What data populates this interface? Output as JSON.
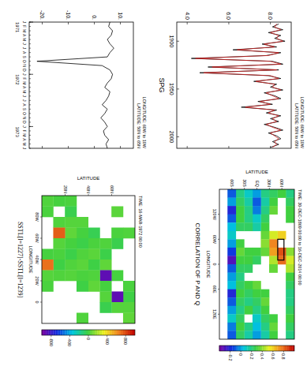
{
  "chart_data": [
    {
      "type": "line",
      "annotations": [
        "LONGITUDE: 60W to 10W",
        "LATITUDE: 50N to 65N"
      ],
      "categories": [
        "J",
        "F",
        "M",
        "A",
        "M",
        "J",
        "J",
        "A",
        "S",
        "O",
        "N",
        "D",
        "J",
        "F",
        "M",
        "A",
        "M",
        "J",
        "J",
        "A",
        "S",
        "O",
        "N",
        "D",
        "J",
        "F",
        "M",
        "A",
        "M",
        "J"
      ],
      "years": [
        {
          "label": "1971",
          "index": 0
        },
        {
          "label": "1972",
          "index": 12
        },
        {
          "label": "1973",
          "index": 24
        }
      ],
      "values": [
        6,
        5.5,
        7,
        6.5,
        5,
        6,
        7.5,
        6,
        5,
        -22,
        3,
        6,
        7,
        6.5,
        5,
        4,
        6,
        5.5,
        4.5,
        3,
        5,
        4,
        2.5,
        4,
        5,
        3.5,
        4,
        5.5,
        4.5,
        5
      ],
      "color": "#000000",
      "ylim": [
        -25,
        15
      ],
      "yticks": [
        {
          "value": -20,
          "label": "-20."
        },
        {
          "value": -10,
          "label": "-10."
        },
        {
          "value": 0,
          "label": "0."
        },
        {
          "value": 10,
          "label": "10."
        }
      ]
    },
    {
      "type": "line",
      "title": "SPG",
      "annotations": [
        "LONGITUDE: 60W to 10W",
        "LATITUDE: 50N to 65N"
      ],
      "x": [
        1882,
        1885,
        1888,
        1891,
        1894,
        1897,
        1900,
        1903,
        1906,
        1909,
        1912,
        1915,
        1918,
        1921,
        1924,
        1927,
        1930,
        1933,
        1936,
        1939,
        1942,
        1945,
        1948,
        1951,
        1954,
        1957,
        1960,
        1963,
        1966,
        1969,
        1972,
        1975,
        1978,
        1981,
        1984,
        1987,
        1990,
        1993,
        1996,
        1999,
        2002,
        2005,
        2008,
        2011
      ],
      "series": [
        {
          "color": "#000000",
          "values": [
            8.4,
            8.1,
            8.6,
            7.9,
            8.5,
            8.2,
            8.7,
            7.6,
            8.3,
            6.2,
            8.5,
            7.8,
            4.2,
            8.1,
            8.6,
            5.0,
            8.4,
            4.6,
            7.9,
            8.5,
            7.2,
            8.3,
            8.0,
            8.6,
            7.7,
            8.2,
            8.5,
            7.4,
            8.1,
            6.6,
            8.3,
            7.8,
            8.5,
            8.0,
            8.4,
            7.7,
            8.2,
            8.6,
            7.9,
            8.3,
            8.5,
            8.1,
            8.4,
            8.0
          ]
        },
        {
          "color": "#d02020",
          "values": [
            8.3,
            8.2,
            8.5,
            8.0,
            8.4,
            8.3,
            8.6,
            7.7,
            8.2,
            6.4,
            8.4,
            7.9,
            4.4,
            8.0,
            8.5,
            5.2,
            8.3,
            4.8,
            8.0,
            8.4,
            7.3,
            8.2,
            8.1,
            8.5,
            7.8,
            8.1,
            8.4,
            7.5,
            8.0,
            6.8,
            8.2,
            7.9,
            8.4,
            8.1,
            8.3,
            7.8,
            8.1,
            8.5,
            8.0,
            8.2,
            8.4,
            8.2,
            8.3,
            8.1
          ]
        }
      ],
      "xlim": [
        1880,
        2012
      ],
      "xticks": [
        1900,
        1950,
        2000
      ],
      "ylim": [
        3.5,
        9
      ],
      "yticks": [
        {
          "value": 4,
          "label": "4.0"
        },
        {
          "value": 6,
          "label": "6.0"
        },
        {
          "value": 8,
          "label": "8.0"
        }
      ]
    },
    {
      "type": "heatmap",
      "title": "CORRELATION OF P AND Q",
      "x_label": "LONGITUDE",
      "y_label": "LATITUDE",
      "annotations": [
        "TIME: 30-DEC-1869 00:00 to 16-DEC-2014 00:00"
      ],
      "x": [
        -170,
        -150,
        -130,
        -110,
        -90,
        -70,
        -50,
        -30,
        -10,
        10,
        30,
        50,
        70,
        90,
        110,
        130,
        150,
        170
      ],
      "y": [
        80,
        60,
        40,
        20,
        0,
        -20,
        -40,
        -60,
        -80
      ],
      "cells": [
        [
          0.2,
          0.25,
          0.3,
          0.3,
          null,
          null,
          null,
          0.4,
          0.5,
          0.45,
          0.3,
          0.25,
          0.2,
          0.2,
          0.25,
          0.3,
          0.25,
          0.2
        ],
        [
          0.3,
          null,
          null,
          null,
          null,
          0.6,
          null,
          0.85,
          0.8,
          null,
          null,
          null,
          null,
          null,
          null,
          null,
          null,
          null
        ],
        [
          0.25,
          0.3,
          0.35,
          null,
          null,
          0.5,
          0.75,
          0.7,
          0.45,
          0.35,
          null,
          null,
          null,
          null,
          null,
          0.3,
          0.35,
          0.3
        ],
        [
          0.2,
          0.15,
          0.2,
          0.25,
          0.3,
          0.35,
          0.4,
          0.35,
          null,
          null,
          null,
          null,
          0.3,
          0.35,
          0.3,
          0.25,
          0.2,
          0.15
        ],
        [
          0,
          -0.1,
          -0.05,
          0.1,
          0.15,
          null,
          null,
          0.3,
          0.25,
          null,
          null,
          0.35,
          0.3,
          0.25,
          0.2,
          0.1,
          0.05,
          0
        ],
        [
          0.1,
          0.15,
          0.2,
          0.2,
          0.25,
          null,
          null,
          0.3,
          0.3,
          0.25,
          null,
          0.3,
          0.25,
          0.2,
          0.3,
          null,
          0.2,
          0.15
        ],
        [
          0.2,
          0.25,
          0.3,
          0.3,
          0.25,
          null,
          0.3,
          0.35,
          0.3,
          0.25,
          0.2,
          0.25,
          0.3,
          0.25,
          0.2,
          0.25,
          0.3,
          0.25
        ],
        [
          -0.1,
          0,
          -0.2,
          -0.1,
          0.05,
          0.1,
          0,
          -0.15,
          -0.3,
          -0.1,
          0,
          0.05,
          -0.2,
          -0.1,
          0,
          0.1,
          -0.05,
          -0.1
        ],
        [
          null,
          null,
          null,
          null,
          null,
          null,
          null,
          null,
          null,
          null,
          null,
          null,
          null,
          null,
          null,
          null,
          null,
          null
        ]
      ],
      "xlim": [
        -180,
        180
      ],
      "xticks": [
        {
          "value": -120,
          "label": "120W"
        },
        {
          "value": -60,
          "label": "60W"
        },
        {
          "value": 0,
          "label": "0"
        },
        {
          "value": 60,
          "label": "60E"
        },
        {
          "value": 120,
          "label": "120E"
        }
      ],
      "ylim": [
        -90,
        90
      ],
      "yticks": [
        {
          "value": -60,
          "label": "60S"
        },
        {
          "value": -30,
          "label": "30S"
        },
        {
          "value": 0,
          "label": "EQ"
        },
        {
          "value": 30,
          "label": "30N"
        },
        {
          "value": 60,
          "label": "60N"
        }
      ],
      "box": {
        "xlim": [
          -60,
          -10
        ],
        "ylim": [
          50,
          65
        ]
      },
      "colorbar": {
        "range": [
          -0.4,
          1.0
        ],
        "ticks": [
          -0.2,
          0,
          0.2,
          0.4,
          0.6,
          0.8
        ]
      }
    },
    {
      "type": "heatmap",
      "title": "SSTL[l=1227]-SSTL[l=1239]",
      "x_label": "LONGITUDE",
      "y_label": "LATITUDE",
      "annotations": [
        "TIME: 16-MAR-1972 00:00"
      ],
      "x": [
        -95,
        -85,
        -75,
        -65,
        -55,
        -45,
        -35,
        -25,
        -15,
        -5,
        5,
        15
      ],
      "y": [
        75,
        65,
        55,
        45,
        35,
        25,
        15,
        5
      ],
      "cells": [
        [
          null,
          null,
          null,
          30,
          null,
          null,
          null,
          null,
          20,
          -10,
          40,
          60
        ],
        [
          null,
          50,
          null,
          20,
          -30,
          null,
          null,
          10,
          null,
          -900,
          40,
          null
        ],
        [
          null,
          null,
          null,
          null,
          30,
          -20,
          60,
          -900,
          10,
          40,
          -30,
          null
        ],
        [
          null,
          null,
          null,
          -40,
          20,
          50,
          -10,
          30,
          60,
          null,
          null,
          null
        ],
        [
          null,
          null,
          40,
          10,
          -20,
          30,
          50,
          20,
          -10,
          null,
          null,
          30
        ],
        [
          20,
          -30,
          40,
          60,
          10,
          -20,
          30,
          40,
          null,
          null,
          null,
          null
        ],
        [
          10,
          null,
          30,
          750,
          40,
          20,
          -10,
          30,
          null,
          null,
          null,
          null
        ],
        [
          30,
          20,
          null,
          null,
          null,
          10,
          700,
          40,
          20,
          null,
          null,
          null
        ]
      ],
      "xlim": [
        -100,
        20
      ],
      "xticks": [
        {
          "value": -80,
          "label": "80W"
        },
        {
          "value": -60,
          "label": "60W"
        },
        {
          "value": -40,
          "label": "40W"
        },
        {
          "value": -20,
          "label": "20W"
        },
        {
          "value": 0,
          "label": "0"
        }
      ],
      "ylim": [
        0,
        80
      ],
      "yticks": [
        {
          "value": 20,
          "label": "20N"
        },
        {
          "value": 40,
          "label": "40N"
        },
        {
          "value": 60,
          "label": "60N"
        }
      ],
      "colorbar": {
        "range": [
          -1000,
          1000
        ],
        "ticks": [
          -800,
          -400,
          0,
          400,
          800
        ]
      }
    }
  ]
}
